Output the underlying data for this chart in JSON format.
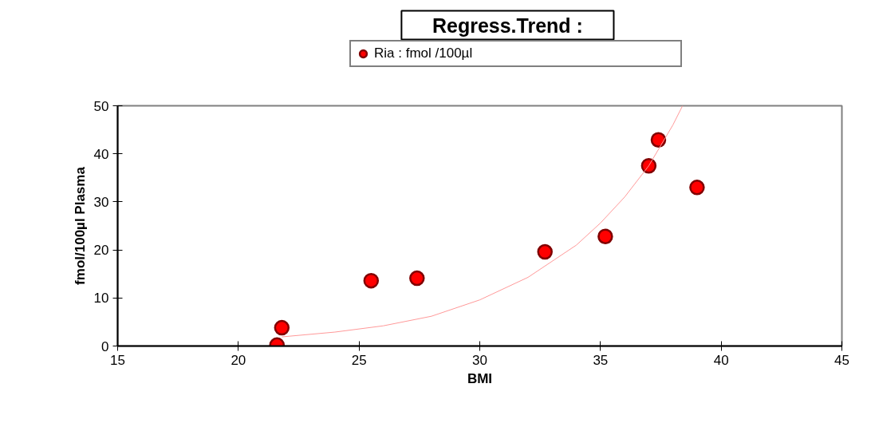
{
  "chart_data": {
    "type": "scatter",
    "title": "Regress.Trend :",
    "xlabel": "BMI",
    "ylabel": "fmol/100µl Plasma",
    "xlim": [
      15,
      45
    ],
    "xticks": [
      15,
      20,
      25,
      30,
      35,
      40,
      45
    ],
    "ylim": [
      0,
      50
    ],
    "yticks": [
      0,
      10,
      20,
      30,
      40,
      50
    ],
    "grid": false,
    "legend": "top",
    "series": [
      {
        "name": "Ria : fmol /100µl",
        "marker": "circle",
        "color": "#ff0000",
        "x": [
          21.6,
          21.8,
          25.5,
          27.4,
          32.7,
          35.2,
          37.0,
          37.4,
          39.0
        ],
        "values": [
          0.2,
          3.8,
          13.6,
          14.1,
          19.6,
          22.8,
          37.5,
          42.9,
          33.0
        ]
      },
      {
        "type": "line",
        "color": "#ff9999",
        "line_style": "solid",
        "x": [
          21.8,
          24,
          26,
          28,
          30,
          32,
          34,
          35,
          36,
          37,
          38,
          38.4
        ],
        "values": [
          1.9,
          2.9,
          4.2,
          6.2,
          9.6,
          14.3,
          21,
          25.6,
          31,
          37.5,
          46,
          50
        ]
      }
    ]
  }
}
